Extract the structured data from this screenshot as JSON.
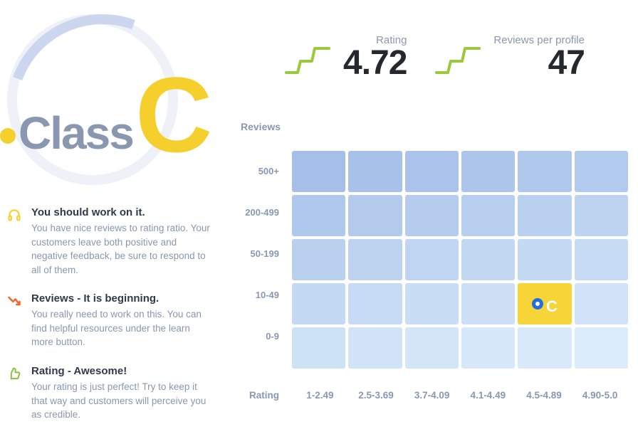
{
  "class_badge": {
    "label": "Class",
    "letter": "C",
    "letter_color": "#f5cf2b",
    "label_color": "#8a97b0",
    "dot_color": "#f5cf2b"
  },
  "insights": [
    {
      "icon": "headphones-icon",
      "icon_color": "#f5cf2b",
      "title": "You should work on it.",
      "body": "You have nice reviews to rating ratio. Your customers leave both positive and negative feedback, be sure to respond to all of them."
    },
    {
      "icon": "trend-down-icon",
      "icon_color": "#f0672a",
      "title": "Reviews - It is beginning.",
      "body": "You really need to work on this. You can find helpful resources under the learn more button."
    },
    {
      "icon": "thumbs-up-icon",
      "icon_color": "#8bc34a",
      "title": "Rating - Awesome!",
      "body": "Your rating is just perfect! Try to keep it that way and customers will perceive you as credible."
    }
  ],
  "metrics": {
    "rating": {
      "label": "Rating",
      "value": "4.72"
    },
    "reviews_per_profile": {
      "label": "Reviews per profile",
      "value": "47"
    },
    "spark_color": "#9cc83b"
  },
  "heatmap": {
    "y_axis_title": "Reviews",
    "x_axis_title": "Rating",
    "row_labels": [
      "500+",
      "200-499",
      "50-199",
      "10-49",
      "0-9"
    ],
    "col_labels": [
      "1-2.49",
      "2.5-3.69",
      "3.7-4.09",
      "4.1-4.49",
      "4.5-4.89",
      "4.90-5.0"
    ],
    "cell_colors": [
      [
        "#a6bfe8",
        "#a8c1e9",
        "#abc3ea",
        "#adc5eb",
        "#b0c8ec",
        "#b2caed"
      ],
      [
        "#b0c8ec",
        "#b3caed",
        "#b5ccee",
        "#b8ceef",
        "#bad0ef",
        "#bdd3f0"
      ],
      [
        "#bad0ef",
        "#bdd3f0",
        "#bfd5f1",
        "#c2d7f2",
        "#c4d9f3",
        "#c7dbf4"
      ],
      [
        "#c4d9f3",
        "#c7dbf4",
        "#c9ddf5",
        "#ccdff5",
        "#f7d438",
        "#d1e4f7"
      ],
      [
        "#cee2f6",
        "#d1e4f7",
        "#d3e6f8",
        "#d6e8f9",
        "#d8eaf9",
        "#dbedfa"
      ]
    ],
    "marker": {
      "row": 3,
      "col": 4,
      "letter": "C",
      "ring_color": "#1f6fe0"
    }
  }
}
